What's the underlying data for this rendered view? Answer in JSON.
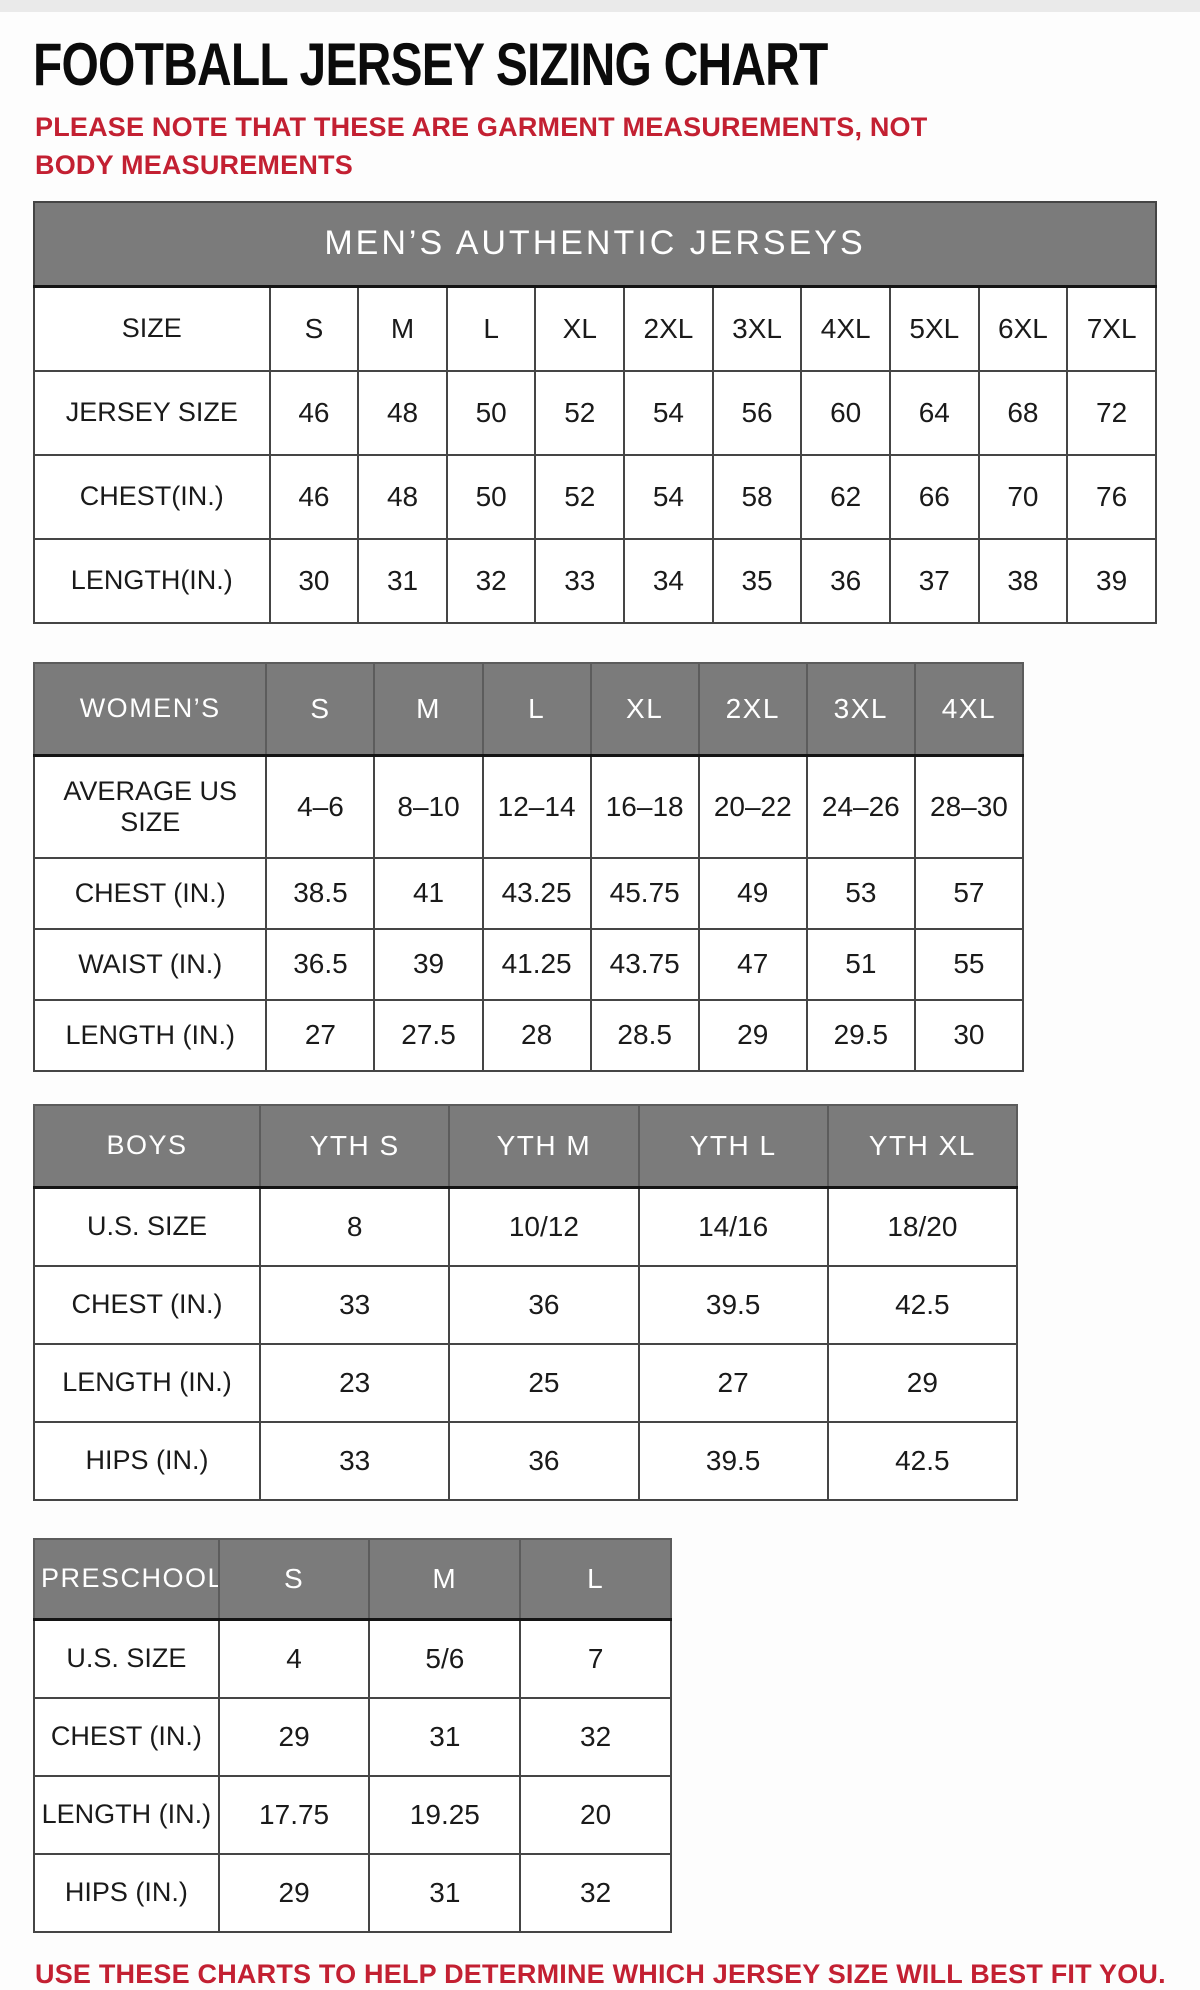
{
  "page": {
    "title": "FOOTBALL JERSEY SIZING CHART",
    "top_note": "PLEASE NOTE THAT THESE ARE GARMENT MEASUREMENTS, NOT BODY MEASUREMENTS",
    "bottom_note": "USE THESE CHARTS TO HELP DETERMINE WHICH JERSEY SIZE WILL BEST FIT YOU.",
    "colors": {
      "note_red": "#c32032",
      "header_gray": "#7b7b7b",
      "header_text": "#ffffff",
      "title_black": "#0b0b0b"
    }
  },
  "tables": [
    {
      "id": "mens",
      "banner": "MEN’S AUTHENTIC JERSEYS",
      "header": [
        "SIZE",
        "S",
        "M",
        "L",
        "XL",
        "2XL",
        "3XL",
        "4XL",
        "5XL",
        "6XL",
        "7XL"
      ],
      "header_variant": "plain",
      "rows": [
        {
          "label": "JERSEY SIZE",
          "values": [
            "46",
            "48",
            "50",
            "52",
            "54",
            "56",
            "60",
            "64",
            "68",
            "72"
          ]
        },
        {
          "label": "CHEST(IN.)",
          "values": [
            "46",
            "48",
            "50",
            "52",
            "54",
            "58",
            "62",
            "66",
            "70",
            "76"
          ]
        },
        {
          "label": "LENGTH(IN.)",
          "values": [
            "30",
            "31",
            "32",
            "33",
            "34",
            "35",
            "36",
            "37",
            "38",
            "39"
          ]
        }
      ]
    },
    {
      "id": "womens",
      "banner": null,
      "header": [
        "WOMEN’S",
        "S",
        "M",
        "L",
        "XL",
        "2XL",
        "3XL",
        "4XL"
      ],
      "header_variant": "gray",
      "rows": [
        {
          "label": "AVERAGE US SIZE",
          "values": [
            "4–6",
            "8–10",
            "12–14",
            "16–18",
            "20–22",
            "24–26",
            "28–30"
          ]
        },
        {
          "label": "CHEST (IN.)",
          "values": [
            "38.5",
            "41",
            "43.25",
            "45.75",
            "49",
            "53",
            "57"
          ]
        },
        {
          "label": "WAIST (IN.)",
          "values": [
            "36.5",
            "39",
            "41.25",
            "43.75",
            "47",
            "51",
            "55"
          ]
        },
        {
          "label": "LENGTH (IN.)",
          "values": [
            "27",
            "27.5",
            "28",
            "28.5",
            "29",
            "29.5",
            "30"
          ]
        }
      ]
    },
    {
      "id": "boys",
      "banner": null,
      "header": [
        "BOYS",
        "YTH S",
        "YTH M",
        "YTH L",
        "YTH XL"
      ],
      "header_variant": "gray",
      "rows": [
        {
          "label": "U.S. SIZE",
          "values": [
            "8",
            "10/12",
            "14/16",
            "18/20"
          ]
        },
        {
          "label": "CHEST (IN.)",
          "values": [
            "33",
            "36",
            "39.5",
            "42.5"
          ]
        },
        {
          "label": "LENGTH (IN.)",
          "values": [
            "23",
            "25",
            "27",
            "29"
          ]
        },
        {
          "label": "HIPS (IN.)",
          "values": [
            "33",
            "36",
            "39.5",
            "42.5"
          ]
        }
      ]
    },
    {
      "id": "preschool",
      "banner": null,
      "header": [
        "PRESCHOOL",
        "S",
        "M",
        "L"
      ],
      "header_variant": "gray",
      "rows": [
        {
          "label": "U.S. SIZE",
          "values": [
            "4",
            "5/6",
            "7"
          ]
        },
        {
          "label": "CHEST (IN.)",
          "values": [
            "29",
            "31",
            "32"
          ]
        },
        {
          "label": "LENGTH (IN.)",
          "values": [
            "17.75",
            "19.25",
            "20"
          ]
        },
        {
          "label": "HIPS (IN.)",
          "values": [
            "29",
            "31",
            "32"
          ]
        }
      ]
    }
  ]
}
